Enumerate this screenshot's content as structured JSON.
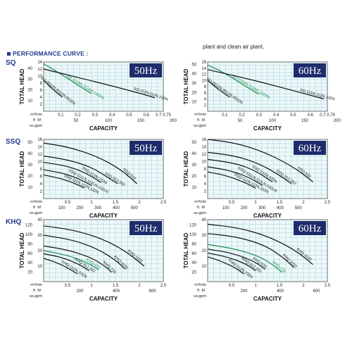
{
  "header": {
    "title": "PERFORMANCE CURVE :",
    "note": "plant and clean air plant."
  },
  "rows": [
    {
      "label": "SQ"
    },
    {
      "label": "SSQ"
    },
    {
      "label": "KHQ"
    }
  ],
  "chart_data": [
    {
      "id": "sq50",
      "type": "line",
      "freq": "50Hz",
      "ylabel": "TOTAL HEAD",
      "xlabel": "CAPACITY",
      "y_unit_top": "M",
      "y_unit_bottom": "ft",
      "x_unit_top": "m³/min",
      "x_unit_bottom": "us.gpm",
      "ylim": [
        0,
        14
      ],
      "xlim": [
        0,
        0.7
      ],
      "yticks_m": [
        2,
        4,
        6,
        8,
        10,
        12,
        14
      ],
      "yticks_ft": [
        10,
        20,
        30,
        40
      ],
      "ft_per_m": 3.2808,
      "xticks_m3": [
        0.1,
        0.2,
        0.3,
        0.4,
        0.5,
        0.6,
        0.7
      ],
      "xticks_m3_labels": [
        "0.1",
        "0.2",
        "0.3",
        "0.4",
        "0.5",
        "0.6",
        "0.7 0.75"
      ],
      "xticks_gpm": [
        50,
        100,
        150,
        200
      ],
      "gpm_per_m3": 264.17,
      "series": [
        {
          "name": "SQ-111AN,112AN,132AN",
          "green": true,
          "points": [
            [
              0,
              13.5
            ],
            [
              0.1,
              10.6
            ],
            [
              0.2,
              7.4
            ],
            [
              0.28,
              5
            ]
          ]
        },
        {
          "name": "SQ-111N,112N,132N",
          "green": false,
          "points": [
            [
              0,
              12
            ],
            [
              0.2,
              9.6
            ],
            [
              0.4,
              7.2
            ],
            [
              0.6,
              4.6
            ],
            [
              0.65,
              3.8
            ]
          ]
        },
        {
          "name": "SQ-0511N,0512N,0532N",
          "green": false,
          "points": [
            [
              0,
              8.8
            ],
            [
              0.05,
              6.3
            ],
            [
              0.11,
              4
            ]
          ]
        }
      ]
    },
    {
      "id": "sq60",
      "type": "line",
      "freq": "60Hz",
      "ylabel": "TOTAL HEAD",
      "xlabel": "CAPACITY",
      "y_unit_top": "M",
      "y_unit_bottom": "ft",
      "x_unit_top": "m³/min",
      "x_unit_bottom": "us.gpm",
      "ylim": [
        0,
        16
      ],
      "xlim": [
        0,
        0.7
      ],
      "yticks_m": [
        2,
        4,
        6,
        8,
        10,
        12,
        14,
        16
      ],
      "yticks_ft": [
        10,
        20,
        30,
        40,
        50
      ],
      "ft_per_m": 3.2808,
      "xticks_m3": [
        0.1,
        0.2,
        0.3,
        0.4,
        0.5,
        0.6,
        0.7
      ],
      "xticks_m3_labels": [
        "0.1",
        "0.2",
        "0.3",
        "0.4",
        "0.5",
        "0.6",
        "0.7 0.75"
      ],
      "xticks_gpm": [
        50,
        100,
        150,
        200
      ],
      "gpm_per_m3": 264.17,
      "series": [
        {
          "name": "SQ-111AN,112AN,132AN",
          "green": true,
          "points": [
            [
              0,
              15
            ],
            [
              0.1,
              12.4
            ],
            [
              0.2,
              8.8
            ],
            [
              0.3,
              5.5
            ]
          ]
        },
        {
          "name": "SQ-111N,112N,132N",
          "green": false,
          "points": [
            [
              0,
              13.5
            ],
            [
              0.2,
              11
            ],
            [
              0.4,
              8.2
            ],
            [
              0.6,
              5.2
            ],
            [
              0.68,
              4
            ]
          ]
        },
        {
          "name": "SQ-0511N,0512N,0532N",
          "green": false,
          "points": [
            [
              0,
              10
            ],
            [
              0.06,
              7.2
            ],
            [
              0.13,
              4.5
            ]
          ]
        }
      ]
    },
    {
      "id": "ssq50",
      "type": "line",
      "freq": "50Hz",
      "ylabel": "TOTAL HEAD",
      "xlabel": "CAPACITY",
      "y_unit_top": "M",
      "y_unit_bottom": "ft",
      "x_unit_top": "m³/min",
      "x_unit_bottom": "us.gpm",
      "ylim": [
        0,
        16
      ],
      "xlim": [
        0,
        2.5
      ],
      "yticks_m": [
        2,
        4,
        6,
        8,
        10,
        12,
        14,
        16
      ],
      "yticks_ft": [
        10,
        20,
        30,
        40,
        50
      ],
      "ft_per_m": 3.2808,
      "xticks_m3": [
        0.5,
        1,
        1.5,
        2,
        2.5
      ],
      "xticks_m3_labels": [
        "0.5",
        "1",
        "1.5",
        "2",
        "2.5"
      ],
      "xticks_gpm": [
        100,
        200,
        300,
        400,
        500
      ],
      "gpm_per_m3": 264.17,
      "series": [
        {
          "name": "SSQ-532",
          "green": false,
          "points": [
            [
              0,
              15
            ],
            [
              0.5,
              14
            ],
            [
              1.1,
              11.5
            ],
            [
              1.6,
              8
            ],
            [
              1.95,
              4
            ]
          ]
        },
        {
          "name": "SSQ-312,332",
          "green": false,
          "points": [
            [
              0,
              11.5
            ],
            [
              0.5,
              10.5
            ],
            [
              1.0,
              8.5
            ],
            [
              1.4,
              5.2
            ],
            [
              1.55,
              4
            ]
          ]
        },
        {
          "name": "SSQ-212N,232N",
          "green": false,
          "points": [
            [
              0,
              9.8
            ],
            [
              0.5,
              8.8
            ],
            [
              0.9,
              6.8
            ],
            [
              1.2,
              4.3
            ]
          ]
        },
        {
          "name": "SSQ-111LN,112LN,132LN",
          "green": false,
          "points": [
            [
              0,
              7.8
            ],
            [
              0.5,
              6.6
            ],
            [
              0.85,
              4.6
            ],
            [
              1.0,
              3.5
            ]
          ]
        },
        {
          "name": "SSQ-111N,112N,132N",
          "green": false,
          "points": [
            [
              0,
              6.4
            ],
            [
              0.4,
              5.3
            ],
            [
              0.7,
              3.8
            ],
            [
              0.85,
              2.8
            ]
          ]
        }
      ]
    },
    {
      "id": "ssq60",
      "type": "line",
      "freq": "60Hz",
      "ylabel": "TOTAL HEAD",
      "xlabel": "CAPACITY",
      "y_unit_top": "M",
      "y_unit_bottom": "ft",
      "x_unit_top": "m³/min",
      "x_unit_bottom": "us.gpm",
      "ylim": [
        0,
        16
      ],
      "xlim": [
        0,
        2.5
      ],
      "yticks_m": [
        2,
        4,
        6,
        8,
        10,
        12,
        14,
        16
      ],
      "yticks_ft": [
        10,
        20,
        30,
        40,
        50
      ],
      "ft_per_m": 3.2808,
      "xticks_m3": [
        0.5,
        1,
        1.5,
        2,
        2.5
      ],
      "xticks_m3_labels": [
        "0.5",
        "1",
        "1.5",
        "2",
        "2.5"
      ],
      "xticks_gpm": [
        100,
        200,
        300,
        400,
        500
      ],
      "gpm_per_m3": 264.17,
      "series": [
        {
          "name": "SSQ-532",
          "green": false,
          "points": [
            [
              0,
              16
            ],
            [
              0.6,
              15
            ],
            [
              1.2,
              12.5
            ],
            [
              1.8,
              8.5
            ],
            [
              2.2,
              4.5
            ]
          ]
        },
        {
          "name": "SSQ-312,332",
          "green": false,
          "points": [
            [
              0,
              12.5
            ],
            [
              0.6,
              11.5
            ],
            [
              1.1,
              9.3
            ],
            [
              1.5,
              6.3
            ],
            [
              1.75,
              4
            ]
          ]
        },
        {
          "name": "SSQ-212N,232N",
          "green": false,
          "points": [
            [
              0,
              10.6
            ],
            [
              0.6,
              9.5
            ],
            [
              1.0,
              7.5
            ],
            [
              1.35,
              4.5
            ]
          ]
        },
        {
          "name": "SSQ-111LN,112LN,132LN",
          "green": false,
          "points": [
            [
              0,
              8.6
            ],
            [
              0.5,
              7.5
            ],
            [
              0.9,
              5.5
            ],
            [
              1.15,
              3.5
            ]
          ]
        },
        {
          "name": "SSQ-111N,112N,132N",
          "green": false,
          "points": [
            [
              0,
              7.2
            ],
            [
              0.4,
              6.2
            ],
            [
              0.8,
              4.2
            ],
            [
              1.0,
              2.8
            ]
          ]
        }
      ]
    },
    {
      "id": "khq50",
      "type": "line",
      "freq": "50Hz",
      "ylabel": "TOTAL HEAD",
      "xlabel": "CAPACITY",
      "y_unit_top": "M",
      "y_unit_bottom": "ft",
      "x_unit_top": "m³/min",
      "x_unit_bottom": "us.gpm",
      "ylim": [
        0,
        40
      ],
      "xlim": [
        0,
        2.5
      ],
      "yticks_m": [
        10,
        20,
        30,
        40
      ],
      "yticks_ft": [
        20,
        40,
        60,
        80,
        100,
        120
      ],
      "ft_per_m": 3.2808,
      "xticks_m3": [
        0.5,
        1,
        1.5,
        2,
        2.5
      ],
      "xticks_m3_labels": [
        "0.5",
        "1",
        "1.5",
        "2",
        "2.5"
      ],
      "xticks_gpm": [
        200,
        400,
        600
      ],
      "gpm_per_m3": 264.17,
      "series": [
        {
          "name": "KHQ-1532",
          "green": false,
          "points": [
            [
              0,
              36
            ],
            [
              0.6,
              33.5
            ],
            [
              1.2,
              28
            ],
            [
              1.7,
              20
            ],
            [
              2.1,
              10
            ]
          ]
        },
        {
          "name": "KHQ-1032",
          "green": false,
          "points": [
            [
              0,
              30
            ],
            [
              0.6,
              27
            ],
            [
              1.1,
              21.5
            ],
            [
              1.5,
              14
            ],
            [
              1.7,
              8
            ]
          ]
        },
        {
          "name": "KHQ-732",
          "green": false,
          "points": [
            [
              0,
              23
            ],
            [
              0.5,
              20.5
            ],
            [
              1.0,
              15.5
            ],
            [
              1.3,
              9.5
            ],
            [
              1.42,
              6
            ]
          ]
        },
        {
          "name": "KHQ-532",
          "green": true,
          "points": [
            [
              0,
              20
            ],
            [
              0.5,
              17
            ],
            [
              0.9,
              12.5
            ],
            [
              1.15,
              7.5
            ]
          ]
        },
        {
          "name": "KHQ-312,332",
          "green": false,
          "points": [
            [
              0,
              18
            ],
            [
              0.4,
              15.5
            ],
            [
              0.75,
              11
            ],
            [
              0.95,
              7
            ]
          ]
        },
        {
          "name": "KHQ-212N,232N",
          "green": false,
          "points": [
            [
              0,
              15
            ],
            [
              0.3,
              12
            ],
            [
              0.55,
              8
            ],
            [
              0.7,
              5
            ]
          ]
        }
      ]
    },
    {
      "id": "khq60",
      "type": "line",
      "freq": "60Hz",
      "ylabel": "TOTAL HEAD",
      "xlabel": "CAPACITY",
      "y_unit_top": "M",
      "y_unit_bottom": "ft",
      "x_unit_top": "m³/min",
      "x_unit_bottom": "us.gpm",
      "ylim": [
        0,
        40
      ],
      "xlim": [
        0,
        2.5
      ],
      "yticks_m": [
        10,
        20,
        30,
        40
      ],
      "yticks_ft": [
        20,
        40,
        60,
        80,
        100,
        120
      ],
      "ft_per_m": 3.2808,
      "xticks_m3": [
        0.5,
        1,
        1.5,
        2,
        2.5
      ],
      "xticks_m3_labels": [
        "0.5",
        "1",
        "1.5",
        "2",
        "2.5"
      ],
      "xticks_gpm": [
        200,
        400,
        600
      ],
      "gpm_per_m3": 264.17,
      "series": [
        {
          "name": "KHQ-1532",
          "green": false,
          "points": [
            [
              0,
              37
            ],
            [
              0.6,
              35
            ],
            [
              1.2,
              30
            ],
            [
              1.8,
              21
            ],
            [
              2.2,
              11
            ]
          ]
        },
        {
          "name": "KHQ-1032",
          "green": false,
          "points": [
            [
              0,
              31
            ],
            [
              0.6,
              29
            ],
            [
              1.2,
              23.5
            ],
            [
              1.6,
              15
            ],
            [
              1.8,
              9
            ]
          ]
        },
        {
          "name": "KHQ-732",
          "green": true,
          "points": [
            [
              0,
              24
            ],
            [
              0.6,
              21
            ],
            [
              1.1,
              16
            ],
            [
              1.4,
              10
            ],
            [
              1.55,
              6
            ]
          ]
        },
        {
          "name": "KHQ-532",
          "green": false,
          "points": [
            [
              0,
              21
            ],
            [
              0.5,
              18.5
            ],
            [
              0.95,
              13.5
            ],
            [
              1.2,
              8
            ]
          ]
        },
        {
          "name": "KHQ-312,332",
          "green": false,
          "points": [
            [
              0,
              18.5
            ],
            [
              0.4,
              16
            ],
            [
              0.8,
              11.5
            ],
            [
              1.0,
              7
            ]
          ]
        },
        {
          "name": "KHQ-212N,232N",
          "green": false,
          "points": [
            [
              0,
              16
            ],
            [
              0.3,
              13
            ],
            [
              0.6,
              8.5
            ],
            [
              0.75,
              5
            ]
          ]
        }
      ]
    }
  ]
}
